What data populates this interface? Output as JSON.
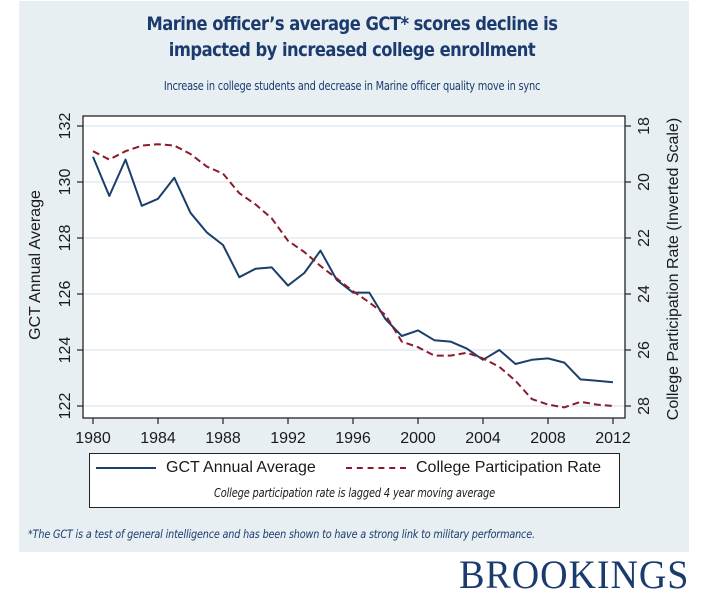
{
  "header": {
    "title_line1": "Marine officer’s average GCT* scores decline is",
    "title_line2": "impacted by increased college enrollment",
    "subtitle": "Increase in college students and decrease in Marine officer quality move in sync"
  },
  "footnote": "*The GCT is a test of general intelligence and has been shown to have a strong link to military performance.",
  "brand": {
    "logo_text": "BROOKINGS"
  },
  "colors": {
    "panel_bg": "#e8eff2",
    "title": "#1b3b6f",
    "gct_series": "#1b3f6b",
    "college_series": "#8b1a2b",
    "gridline": "#e2eaee"
  },
  "chart_data": {
    "type": "line",
    "title": "Marine officer’s average GCT* scores decline is impacted by increased college enrollment",
    "subtitle": "Increase in college students and decrease in Marine officer quality move in sync",
    "xlabel": "",
    "ylabel": "GCT Annual Average",
    "y2label": "College Participation Rate (Inverted Scale)",
    "xlim": [
      1980,
      2012
    ],
    "ylim": [
      122,
      132
    ],
    "y2lim": [
      18,
      28
    ],
    "y2_inverted": true,
    "grid": true,
    "x_ticks": [
      "1980",
      "1984",
      "1988",
      "1992",
      "1996",
      "2000",
      "2004",
      "2008",
      "2012"
    ],
    "y_ticks": [
      "122",
      "124",
      "126",
      "128",
      "130",
      "132"
    ],
    "y2_ticks": [
      "18",
      "20",
      "22",
      "24",
      "26",
      "28"
    ],
    "legend_position": "bottom",
    "legend_note": "College participation rate is lagged 4 year moving average",
    "x": [
      1980,
      1981,
      1982,
      1983,
      1984,
      1985,
      1986,
      1987,
      1988,
      1989,
      1990,
      1991,
      1992,
      1993,
      1994,
      1995,
      1996,
      1997,
      1998,
      1999,
      2000,
      2001,
      2002,
      2003,
      2004,
      2005,
      2006,
      2007,
      2008,
      2009,
      2010,
      2011,
      2012
    ],
    "series": [
      {
        "name": "GCT Annual Average",
        "axis": "left",
        "style": "solid",
        "values": [
          130.9,
          129.5,
          130.8,
          129.15,
          129.4,
          130.15,
          128.9,
          128.2,
          127.75,
          126.6,
          126.9,
          126.95,
          126.3,
          126.75,
          127.55,
          126.5,
          126.05,
          126.05,
          125.1,
          124.5,
          124.7,
          124.35,
          124.3,
          124.05,
          123.65,
          124.0,
          123.5,
          123.65,
          123.7,
          123.55,
          122.95,
          122.9,
          122.85
        ]
      },
      {
        "name": "College Participation Rate",
        "axis": "right",
        "style": "dashed",
        "values": [
          18.9,
          19.2,
          18.9,
          18.7,
          18.65,
          18.7,
          19.0,
          19.45,
          19.7,
          20.4,
          20.8,
          21.3,
          22.1,
          22.5,
          23.0,
          23.45,
          23.9,
          24.3,
          24.75,
          25.7,
          25.9,
          26.2,
          26.2,
          26.1,
          26.3,
          26.6,
          27.1,
          27.75,
          27.95,
          28.05,
          27.85,
          27.95,
          28.0
        ]
      }
    ]
  }
}
